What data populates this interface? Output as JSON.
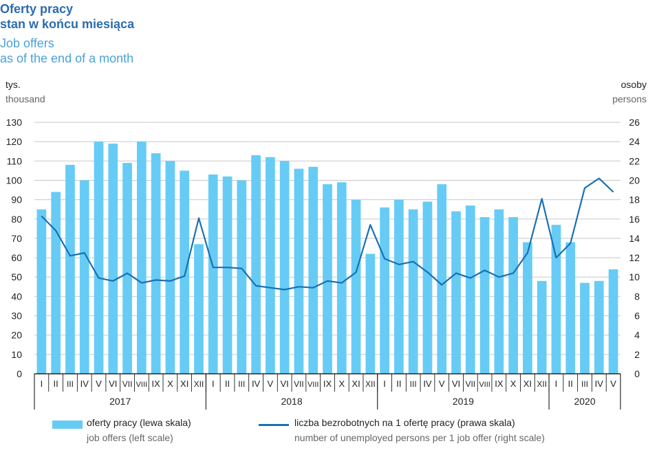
{
  "header": {
    "title_pl": "Oferty pracy",
    "title_pl2": "stan w końcu miesiąca",
    "title_en": "Job offers",
    "title_en2": "as of the end of a month"
  },
  "axes": {
    "left_unit_pl": "tys.",
    "left_unit_en": "thousand",
    "right_unit_pl": "osoby",
    "right_unit_en": "persons"
  },
  "legend": {
    "bars_pl": "oferty pracy (lewa skala)",
    "bars_en": "job offers (left scale)",
    "line_pl": "liczba bezrobotnych na 1 ofertę pracy (prawa skala)",
    "line_en": "number of unemployed persons per 1 job offer (right scale)"
  },
  "colors": {
    "bar": "#66ccf5",
    "line": "#1a6fb3",
    "grid": "#c8c8c8",
    "title": "#2b6cb0"
  },
  "chart_data": {
    "type": "bar",
    "years": [
      {
        "label": "2017",
        "months": 12
      },
      {
        "label": "2018",
        "months": 12
      },
      {
        "label": "2019",
        "months": 12
      },
      {
        "label": "2020",
        "months": 5
      }
    ],
    "categories": [
      "I",
      "II",
      "III",
      "IV",
      "V",
      "VI",
      "VII",
      "VIII",
      "IX",
      "X",
      "XI",
      "XII",
      "I",
      "II",
      "III",
      "IV",
      "V",
      "VI",
      "VII",
      "VIII",
      "IX",
      "X",
      "XI",
      "XII",
      "I",
      "II",
      "III",
      "IV",
      "V",
      "VI",
      "VII",
      "VIII",
      "IX",
      "X",
      "XI",
      "XII",
      "I",
      "II",
      "III",
      "IV",
      "V"
    ],
    "ylim_left": [
      0,
      130
    ],
    "yticks_left": [
      0,
      10,
      20,
      30,
      40,
      50,
      60,
      70,
      80,
      90,
      100,
      110,
      120,
      130
    ],
    "ylim_right": [
      0,
      26
    ],
    "yticks_right": [
      0,
      2,
      4,
      6,
      8,
      10,
      12,
      14,
      16,
      18,
      20,
      22,
      24,
      26
    ],
    "grid": true,
    "legend_position": "bottom",
    "series": [
      {
        "name": "oferty pracy (lewa skala)",
        "type": "bar",
        "axis": "left",
        "values": [
          85,
          94,
          108,
          100,
          120,
          119,
          109,
          120,
          114,
          110,
          105,
          67,
          103,
          102,
          100,
          113,
          112,
          110,
          106,
          107,
          98,
          99,
          90,
          62,
          86,
          90,
          85,
          89,
          98,
          84,
          87,
          81,
          85,
          81,
          68,
          48,
          77,
          68,
          47,
          48,
          54
        ]
      },
      {
        "name": "liczba bezrobotnych na 1 ofertę pracy (prawa skala)",
        "type": "line",
        "axis": "right",
        "values": [
          16.3,
          14.8,
          12.2,
          12.5,
          9.9,
          9.6,
          10.4,
          9.4,
          9.7,
          9.6,
          10.1,
          16.1,
          11.0,
          11.0,
          10.9,
          9.1,
          8.9,
          8.7,
          9.0,
          8.9,
          9.6,
          9.4,
          10.5,
          15.4,
          11.9,
          11.3,
          11.6,
          10.5,
          9.2,
          10.4,
          9.9,
          10.7,
          10.0,
          10.4,
          12.5,
          18.1,
          12.0,
          13.5,
          19.2,
          20.2,
          18.8
        ]
      }
    ]
  }
}
